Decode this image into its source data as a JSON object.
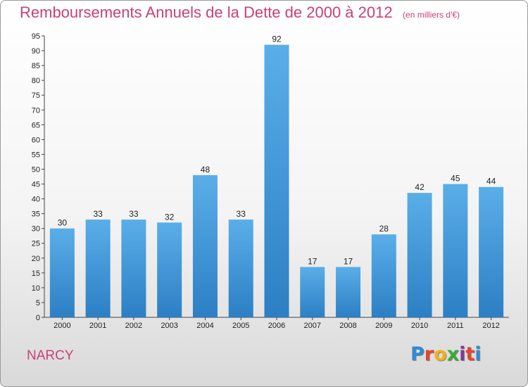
{
  "header": {
    "title": "Remboursements Annuels de la Dette de 2000 à 2012",
    "subtitle": "(en milliers d'€)"
  },
  "footer": {
    "commune": "NARCY",
    "logo_text": "Proxiti",
    "logo_colors": [
      "#2e8bd6",
      "#e8422f",
      "#f2b01e",
      "#3aaa35",
      "#7d3c98",
      "#e8422f",
      "#2e8bd6"
    ]
  },
  "chart_data": {
    "type": "bar",
    "categories": [
      "2000",
      "2001",
      "2002",
      "2003",
      "2004",
      "2005",
      "2006",
      "2007",
      "2008",
      "2009",
      "2010",
      "2011",
      "2012"
    ],
    "values": [
      30,
      33,
      33,
      32,
      48,
      33,
      92,
      17,
      17,
      28,
      42,
      45,
      44
    ],
    "title": "Remboursements Annuels de la Dette de 2000 à 2012",
    "xlabel": "",
    "ylabel": "",
    "ylim": [
      0,
      95
    ],
    "ytick_step": 5,
    "grid": false,
    "bar_color": "#3d97d8"
  }
}
